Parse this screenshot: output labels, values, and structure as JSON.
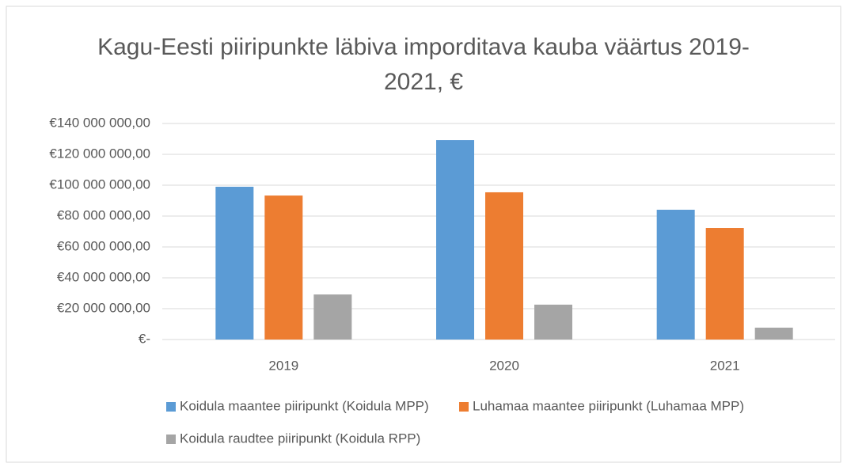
{
  "chart_data": {
    "type": "bar",
    "title": "Kagu-Eesti piiripunkte läbiva imporditava kauba väärtus 2019-2021, €",
    "categories": [
      "2019",
      "2020",
      "2021"
    ],
    "series": [
      {
        "name": "Koidula maantee piiripunkt (Koidula MPP)",
        "color": "#5b9bd5",
        "values": [
          99000000,
          129200000,
          84100000
        ]
      },
      {
        "name": "Luhamaa maantee piiripunkt (Luhamaa MPP)",
        "color": "#ed7d31",
        "values": [
          93300000,
          95400000,
          72300000
        ]
      },
      {
        "name": "Koidula raudtee piiripunkt (Koidula RPP)",
        "color": "#a5a5a5",
        "values": [
          29200000,
          22600000,
          7700000
        ]
      }
    ],
    "ylim": [
      0,
      140000000
    ],
    "yticks": [
      {
        "value": 0,
        "label": "€-"
      },
      {
        "value": 20000000,
        "label": "€20 000 000,00"
      },
      {
        "value": 40000000,
        "label": "€40 000 000,00"
      },
      {
        "value": 60000000,
        "label": "€60 000 000,00"
      },
      {
        "value": 80000000,
        "label": "€80 000 000,00"
      },
      {
        "value": 100000000,
        "label": "€100 000 000,00"
      },
      {
        "value": 120000000,
        "label": "€120 000 000,00"
      },
      {
        "value": 140000000,
        "label": "€140 000 000,00"
      }
    ],
    "grid": true,
    "legend": "bottom"
  }
}
